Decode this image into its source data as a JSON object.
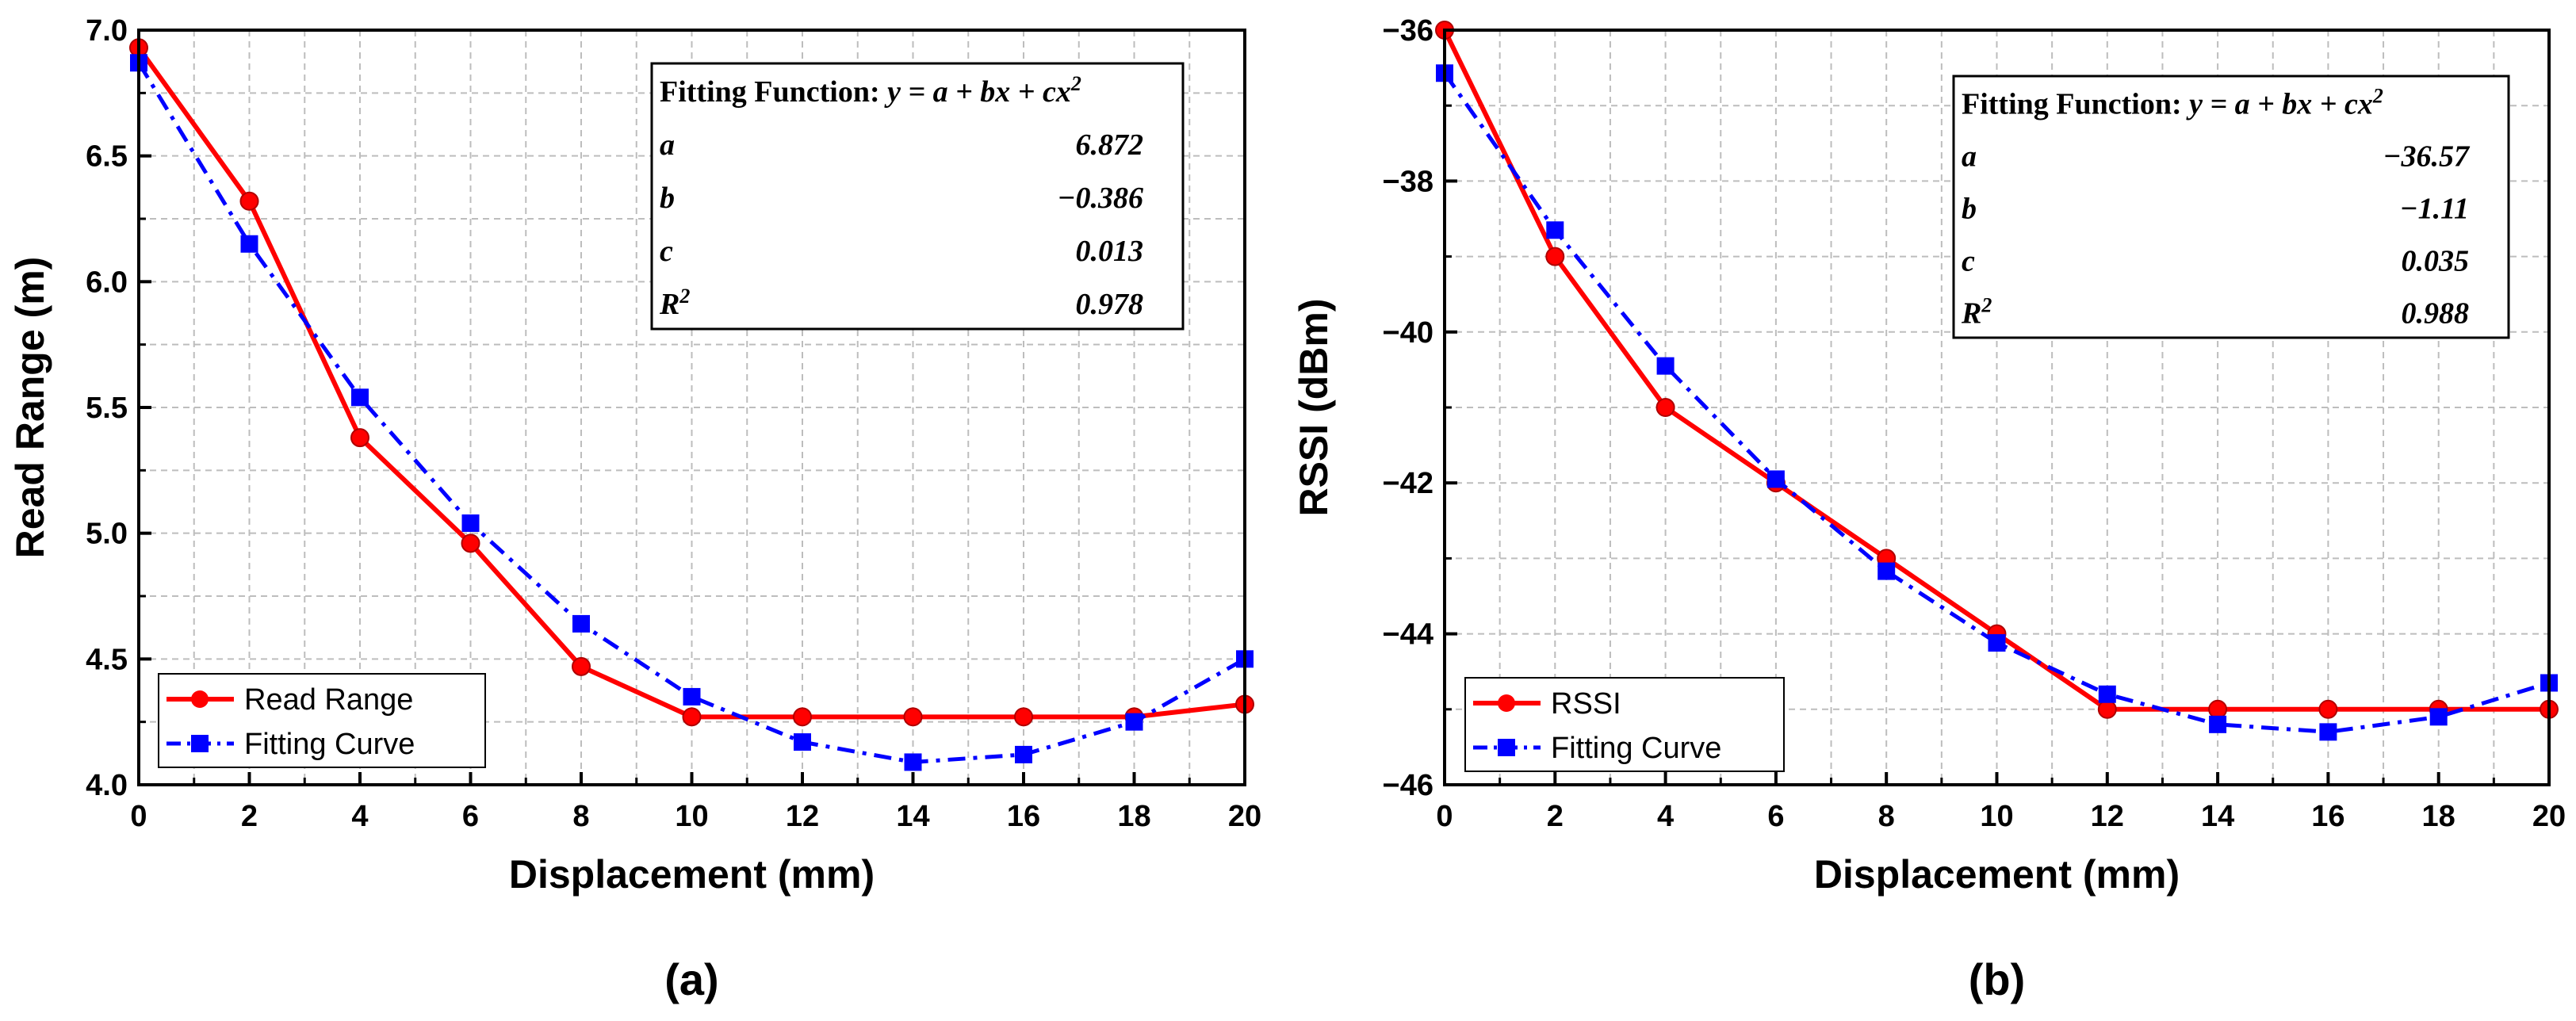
{
  "colors": {
    "measured": "#ff0000",
    "fit": "#0000ff",
    "grid": "#bdbdbd",
    "axis": "#000000"
  },
  "chart_data": [
    {
      "type": "line",
      "panel_label": "(a)",
      "xlabel": "Displacement (mm)",
      "ylabel": "Read Range (m)",
      "xlim": [
        0,
        20
      ],
      "ylim": [
        4.0,
        7.0
      ],
      "x_ticks": [
        "0",
        "2",
        "4",
        "6",
        "8",
        "10",
        "12",
        "14",
        "16",
        "18",
        "20"
      ],
      "y_ticks": [
        "4.0",
        "4.5",
        "5.0",
        "5.5",
        "6.0",
        "6.5",
        "7.0"
      ],
      "grid": true,
      "legend_position": "bottom-left",
      "x": [
        0,
        2,
        4,
        6,
        8,
        10,
        12,
        14,
        16,
        18,
        20
      ],
      "series": [
        {
          "name": "Read Range",
          "style": "solid-circle",
          "values": [
            6.93,
            6.32,
            5.38,
            4.96,
            4.47,
            4.27,
            4.27,
            4.27,
            4.27,
            4.27,
            4.32
          ]
        },
        {
          "name": "Fitting Curve",
          "style": "dashdot-square",
          "values": [
            6.87,
            6.15,
            5.54,
            5.04,
            4.64,
            4.35,
            4.17,
            4.09,
            4.12,
            4.25,
            4.5
          ]
        }
      ],
      "fit_box": {
        "title": "Fitting Function: ",
        "formula": "y = a + bx + cx",
        "formula_sup": "2",
        "rows": [
          {
            "label": "a",
            "value": "6.872"
          },
          {
            "label": "b",
            "value": "−0.386"
          },
          {
            "label": "c",
            "value": "0.013"
          },
          {
            "label": "R",
            "sup": "2",
            "value": "0.978"
          }
        ]
      }
    },
    {
      "type": "line",
      "panel_label": "(b)",
      "xlabel": "Displacement (mm)",
      "ylabel": "RSSI (dBm)",
      "xlim": [
        0,
        20
      ],
      "ylim": [
        -46,
        -36
      ],
      "x_ticks": [
        "0",
        "2",
        "4",
        "6",
        "8",
        "10",
        "12",
        "14",
        "16",
        "18",
        "20"
      ],
      "y_ticks": [
        "−46",
        "−44",
        "−42",
        "−40",
        "−38",
        "−36"
      ],
      "grid": true,
      "legend_position": "bottom-left",
      "x": [
        0,
        2,
        4,
        6,
        8,
        10,
        12,
        14,
        16,
        18,
        20
      ],
      "series": [
        {
          "name": "RSSI",
          "style": "solid-circle",
          "values": [
            -36,
            -39,
            -41,
            -42,
            -43,
            -44,
            -45,
            -45,
            -45,
            -45,
            -45
          ]
        },
        {
          "name": "Fitting Curve",
          "style": "dashdot-square",
          "values": [
            -36.57,
            -38.65,
            -40.45,
            -41.95,
            -43.17,
            -44.12,
            -44.8,
            -45.2,
            -45.3,
            -45.1,
            -44.65
          ]
        }
      ],
      "fit_box": {
        "title": "Fitting Function: ",
        "formula": "y = a + bx + cx",
        "formula_sup": "2",
        "rows": [
          {
            "label": "a",
            "value": "−36.57"
          },
          {
            "label": "b",
            "value": "−1.11"
          },
          {
            "label": "c",
            "value": "0.035"
          },
          {
            "label": "R",
            "sup": "2",
            "value": "0.988"
          }
        ]
      }
    }
  ]
}
